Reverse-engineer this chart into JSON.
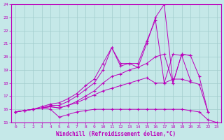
{
  "xlabel": "Windchill (Refroidissement éolien,°C)",
  "xlim": [
    -0.5,
    23.5
  ],
  "ylim": [
    15,
    24
  ],
  "yticks": [
    15,
    16,
    17,
    18,
    19,
    20,
    21,
    22,
    23,
    24
  ],
  "xticks": [
    0,
    1,
    2,
    3,
    4,
    5,
    6,
    7,
    8,
    9,
    10,
    11,
    12,
    13,
    14,
    15,
    16,
    17,
    18,
    19,
    20,
    21,
    22,
    23
  ],
  "bg_color": "#c5e8e8",
  "grid_color": "#a0cccc",
  "line_color": "#bb00bb",
  "lines": [
    {
      "x": [
        0,
        1,
        2,
        3,
        4,
        5,
        6,
        7,
        8,
        9,
        10,
        11,
        12,
        13,
        14,
        15,
        16,
        17,
        18,
        19,
        20,
        21,
        22,
        23
      ],
      "y": [
        15.8,
        15.9,
        16.0,
        16.1,
        16.0,
        15.4,
        15.6,
        15.8,
        15.9,
        16.0,
        16.0,
        16.0,
        16.0,
        16.0,
        16.0,
        16.0,
        16.0,
        16.0,
        16.0,
        16.0,
        15.9,
        15.8,
        15.2,
        15.0
      ]
    },
    {
      "x": [
        0,
        1,
        2,
        3,
        4,
        5,
        6,
        7,
        8,
        9,
        10,
        11,
        12,
        13,
        14,
        15,
        16,
        17,
        18,
        19,
        20,
        21,
        22
      ],
      "y": [
        15.8,
        15.9,
        16.0,
        16.1,
        16.2,
        16.1,
        16.3,
        16.5,
        16.8,
        17.1,
        17.4,
        17.6,
        17.8,
        18.0,
        18.2,
        18.4,
        18.0,
        18.0,
        18.3,
        18.3,
        18.1,
        17.9,
        15.8
      ]
    },
    {
      "x": [
        0,
        1,
        2,
        3,
        4,
        5,
        6,
        7,
        8,
        9,
        10,
        11,
        12,
        13,
        14,
        15,
        16,
        17,
        18,
        19,
        20
      ],
      "y": [
        15.8,
        15.9,
        16.0,
        16.2,
        16.4,
        16.5,
        16.8,
        17.2,
        17.8,
        18.3,
        19.5,
        20.7,
        19.3,
        19.5,
        19.2,
        21.0,
        23.0,
        24.0,
        18.0,
        20.2,
        20.1
      ]
    },
    {
      "x": [
        0,
        1,
        2,
        3,
        4,
        5,
        6,
        7,
        8,
        9,
        10,
        11,
        12,
        13,
        14,
        15,
        16,
        17,
        18,
        19,
        20
      ],
      "y": [
        15.8,
        15.9,
        16.0,
        16.1,
        16.3,
        16.3,
        16.6,
        17.0,
        17.5,
        18.0,
        19.0,
        20.7,
        19.5,
        19.5,
        19.5,
        21.2,
        22.8,
        18.0,
        20.2,
        20.1,
        18.2
      ]
    },
    {
      "x": [
        0,
        1,
        2,
        3,
        4,
        5,
        6,
        7,
        8,
        9,
        10,
        11,
        12,
        13,
        14,
        15,
        16,
        17,
        18,
        19,
        20,
        21,
        22
      ],
      "y": [
        15.8,
        15.9,
        16.0,
        16.1,
        16.2,
        16.1,
        16.3,
        16.6,
        17.0,
        17.4,
        18.0,
        18.5,
        18.7,
        19.0,
        19.2,
        19.5,
        20.0,
        20.2,
        18.0,
        20.2,
        20.1,
        18.5,
        15.8
      ]
    }
  ]
}
